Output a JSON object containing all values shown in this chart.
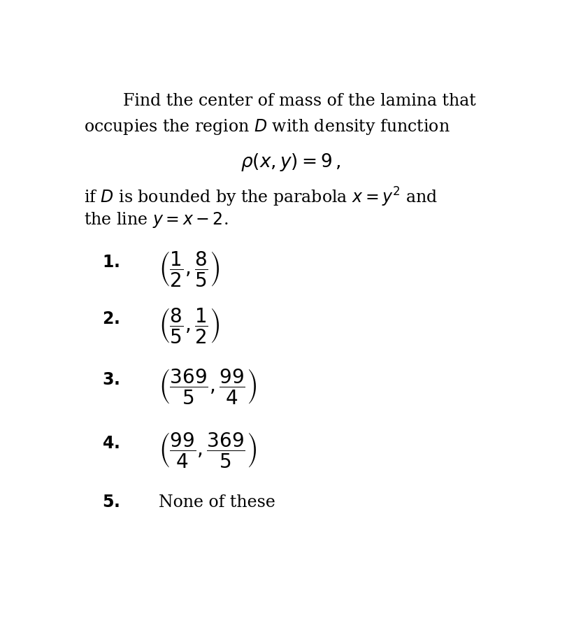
{
  "background_color": "#ffffff",
  "title_line1": "Find the center of mass of the lamina that",
  "title_line2": "occupies the region $D$ with density function",
  "density_eq": "$\\rho(x, y) = 9\\,,$",
  "bounded_line1": "if $D$ is bounded by the parabola $x = y^2$ and",
  "bounded_line2": "the line $y = x - 2$.",
  "opt1_num": "1.",
  "opt1_tex": "$\\left(\\dfrac{1}{2},\\dfrac{8}{5}\\right)$",
  "opt2_num": "2.",
  "opt2_tex": "$\\left(\\dfrac{8}{5},\\dfrac{1}{2}\\right)$",
  "opt3_num": "3.",
  "opt3_tex": "$\\left(\\dfrac{369}{5},\\dfrac{99}{4}\\right)$",
  "opt4_num": "4.",
  "opt4_tex": "$\\left(\\dfrac{99}{4},\\dfrac{369}{5}\\right)$",
  "opt5_num": "5.",
  "opt5_tex": "None of these",
  "figsize": [
    8.12,
    9.08
  ],
  "dpi": 100
}
